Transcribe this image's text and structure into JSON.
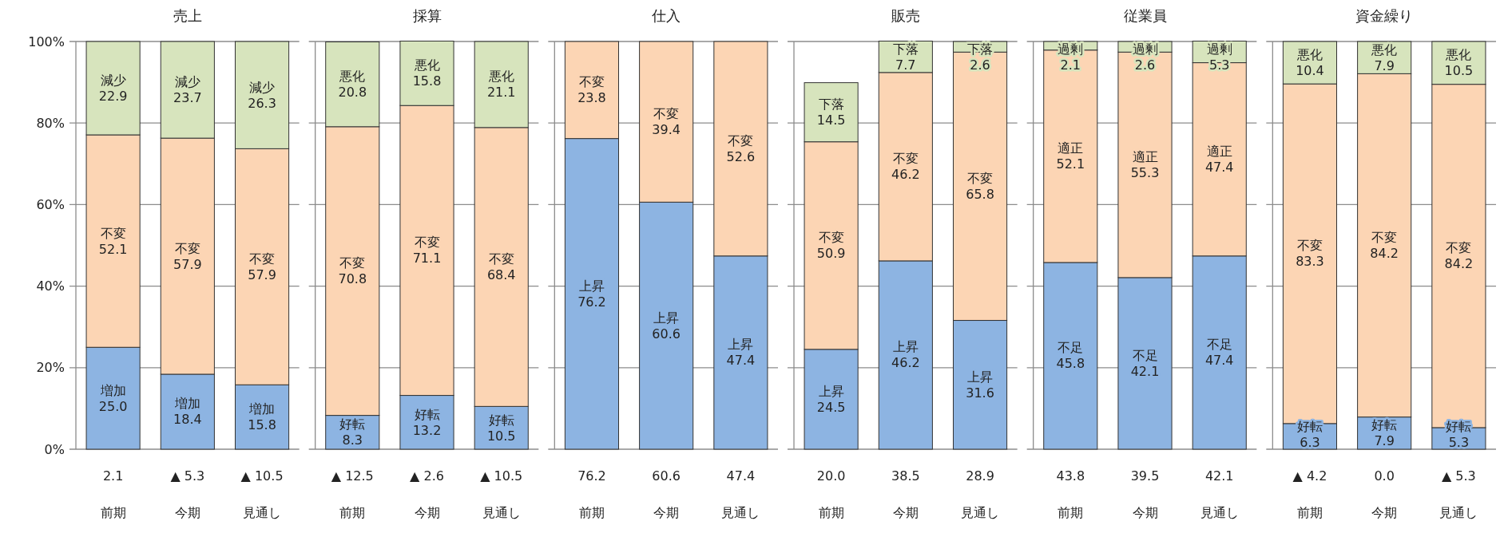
{
  "chart_data": [
    {
      "type": "bar",
      "stacked": true,
      "title": "売上",
      "categories": [
        "前期",
        "今期",
        "見通し"
      ],
      "series": [
        {
          "name": "増加",
          "color": "#8db4e2",
          "values": [
            25.0,
            18.4,
            15.8
          ],
          "value_labels": [
            "25.0",
            "18.4",
            "15.8"
          ]
        },
        {
          "name": "不変",
          "color": "#fcd5b4",
          "values": [
            52.1,
            57.9,
            57.9
          ],
          "value_labels": [
            "52.1",
            "57.9",
            "57.9"
          ]
        },
        {
          "name": "減少",
          "color": "#d7e4bd",
          "values": [
            22.9,
            23.7,
            26.3
          ],
          "value_labels": [
            "22.9",
            "23.7",
            "26.3"
          ]
        }
      ],
      "ylim": [
        0,
        100
      ],
      "yticks": [
        {
          "value": 0,
          "label": "0%"
        },
        {
          "value": 20,
          "label": "20%"
        },
        {
          "value": 40,
          "label": "40%"
        },
        {
          "value": 60,
          "label": "60%"
        },
        {
          "value": 80,
          "label": "80%"
        },
        {
          "value": 100,
          "label": "100%"
        }
      ],
      "grid": "y",
      "annotations": [
        "2.1",
        "▲ 5.3",
        "▲ 10.5"
      ]
    },
    {
      "type": "bar",
      "stacked": true,
      "title": "採算",
      "categories": [
        "前期",
        "今期",
        "見通し"
      ],
      "series": [
        {
          "name": "好転",
          "color": "#8db4e2",
          "values": [
            8.3,
            13.2,
            10.5
          ],
          "value_labels": [
            "8.3",
            "13.2",
            "10.5"
          ]
        },
        {
          "name": "不変",
          "color": "#fcd5b4",
          "values": [
            70.8,
            71.1,
            68.4
          ],
          "value_labels": [
            "70.8",
            "71.1",
            "68.4"
          ]
        },
        {
          "name": "悪化",
          "color": "#d7e4bd",
          "values": [
            20.8,
            15.8,
            21.1
          ],
          "value_labels": [
            "20.8",
            "15.8",
            "21.1"
          ]
        }
      ],
      "ylim": [
        0,
        100
      ],
      "yticks": [
        0,
        20,
        40,
        60,
        80,
        100
      ],
      "grid": "y",
      "tick_labels": "x",
      "annotations": [
        "▲ 12.5",
        "▲ 2.6",
        "▲ 10.5"
      ]
    },
    {
      "type": "bar",
      "stacked": true,
      "title": "仕入",
      "categories": [
        "前期",
        "今期",
        "見通し"
      ],
      "series": [
        {
          "name": "上昇",
          "color": "#8db4e2",
          "values": [
            76.2,
            60.6,
            47.4
          ],
          "value_labels": [
            "76.2",
            "60.6",
            "47.4"
          ]
        },
        {
          "name": "不変",
          "color": "#fcd5b4",
          "values": [
            23.8,
            39.4,
            52.6
          ],
          "value_labels": [
            "23.8",
            "39.4",
            "52.6"
          ]
        }
      ],
      "ylim": [
        0,
        100
      ],
      "yticks": [
        0,
        20,
        40,
        60,
        80,
        100
      ],
      "grid": "y",
      "tick_labels": "x",
      "annotations": [
        "76.2",
        "60.6",
        "47.4"
      ]
    },
    {
      "type": "bar",
      "stacked": true,
      "title": "販売",
      "categories": [
        "前期",
        "今期",
        "見通し"
      ],
      "series": [
        {
          "name": "上昇",
          "color": "#8db4e2",
          "values": [
            24.5,
            46.2,
            31.6
          ],
          "value_labels": [
            "24.5",
            "46.2",
            "31.6"
          ]
        },
        {
          "name": "不変",
          "color": "#fcd5b4",
          "values": [
            50.9,
            46.2,
            65.8
          ],
          "value_labels": [
            "50.9",
            "46.2",
            "65.8"
          ]
        },
        {
          "name": "下落",
          "color": "#d7e4bd",
          "values": [
            14.5,
            7.7,
            2.6
          ],
          "value_labels": [
            "14.5",
            "7.7",
            "2.6"
          ]
        }
      ],
      "ylim": [
        0,
        100
      ],
      "yticks": [
        0,
        20,
        40,
        60,
        80,
        100
      ],
      "grid": "y",
      "tick_labels": "x",
      "annotations": [
        "20.0",
        "38.5",
        "28.9"
      ]
    },
    {
      "type": "bar",
      "stacked": true,
      "title": "従業員",
      "categories": [
        "前期",
        "今期",
        "見通し"
      ],
      "series": [
        {
          "name": "不足",
          "color": "#8db4e2",
          "values": [
            45.8,
            42.1,
            47.4
          ],
          "value_labels": [
            "45.8",
            "42.1",
            "47.4"
          ]
        },
        {
          "name": "適正",
          "color": "#fcd5b4",
          "values": [
            52.1,
            55.3,
            47.4
          ],
          "value_labels": [
            "52.1",
            "55.3",
            "47.4"
          ]
        },
        {
          "name": "過剰",
          "color": "#d7e4bd",
          "values": [
            2.1,
            2.6,
            5.3
          ],
          "value_labels": [
            "2.1",
            "2.6",
            "5.3"
          ]
        }
      ],
      "ylim": [
        0,
        100
      ],
      "yticks": [
        0,
        20,
        40,
        60,
        80,
        100
      ],
      "grid": "y",
      "tick_labels": "x",
      "annotations": [
        "43.8",
        "39.5",
        "42.1"
      ]
    },
    {
      "type": "bar",
      "stacked": true,
      "title": "資金繰り",
      "categories": [
        "前期",
        "今期",
        "見通し"
      ],
      "series": [
        {
          "name": "好転",
          "color": "#8db4e2",
          "values": [
            6.3,
            7.9,
            5.3
          ],
          "value_labels": [
            "6.3",
            "7.9",
            "5.3"
          ]
        },
        {
          "name": "不変",
          "color": "#fcd5b4",
          "values": [
            83.3,
            84.2,
            84.2
          ],
          "value_labels": [
            "83.3",
            "84.2",
            "84.2"
          ]
        },
        {
          "name": "悪化",
          "color": "#d7e4bd",
          "values": [
            10.4,
            7.9,
            10.5
          ],
          "value_labels": [
            "10.4",
            "7.9",
            "10.5"
          ]
        }
      ],
      "ylim": [
        0,
        100
      ],
      "yticks": [
        0,
        20,
        40,
        60,
        80,
        100
      ],
      "grid": "y",
      "tick_labels": "x",
      "annotations": [
        "▲ 4.2",
        "0.0",
        "▲ 5.3"
      ]
    }
  ]
}
